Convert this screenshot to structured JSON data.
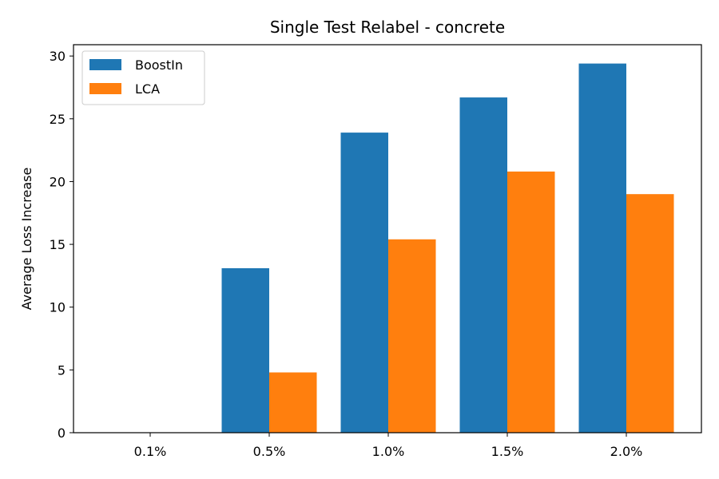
{
  "chart_data": {
    "type": "bar",
    "title": "Single Test Relabel - concrete",
    "xlabel": "",
    "ylabel": "Average Loss Increase",
    "categories": [
      "0.1%",
      "0.5%",
      "1.0%",
      "1.5%",
      "2.0%"
    ],
    "series": [
      {
        "name": "BoostIn",
        "color": "#1f77b4",
        "values": [
          0,
          13.1,
          23.9,
          26.7,
          29.4
        ]
      },
      {
        "name": "LCA",
        "color": "#ff7f0e",
        "values": [
          0,
          4.8,
          15.4,
          20.8,
          19.0
        ]
      }
    ],
    "ylim": [
      0,
      30.9
    ],
    "yticks": [
      0,
      5,
      10,
      15,
      20,
      25,
      30
    ],
    "legend_position": "top-left",
    "grid": false
  }
}
